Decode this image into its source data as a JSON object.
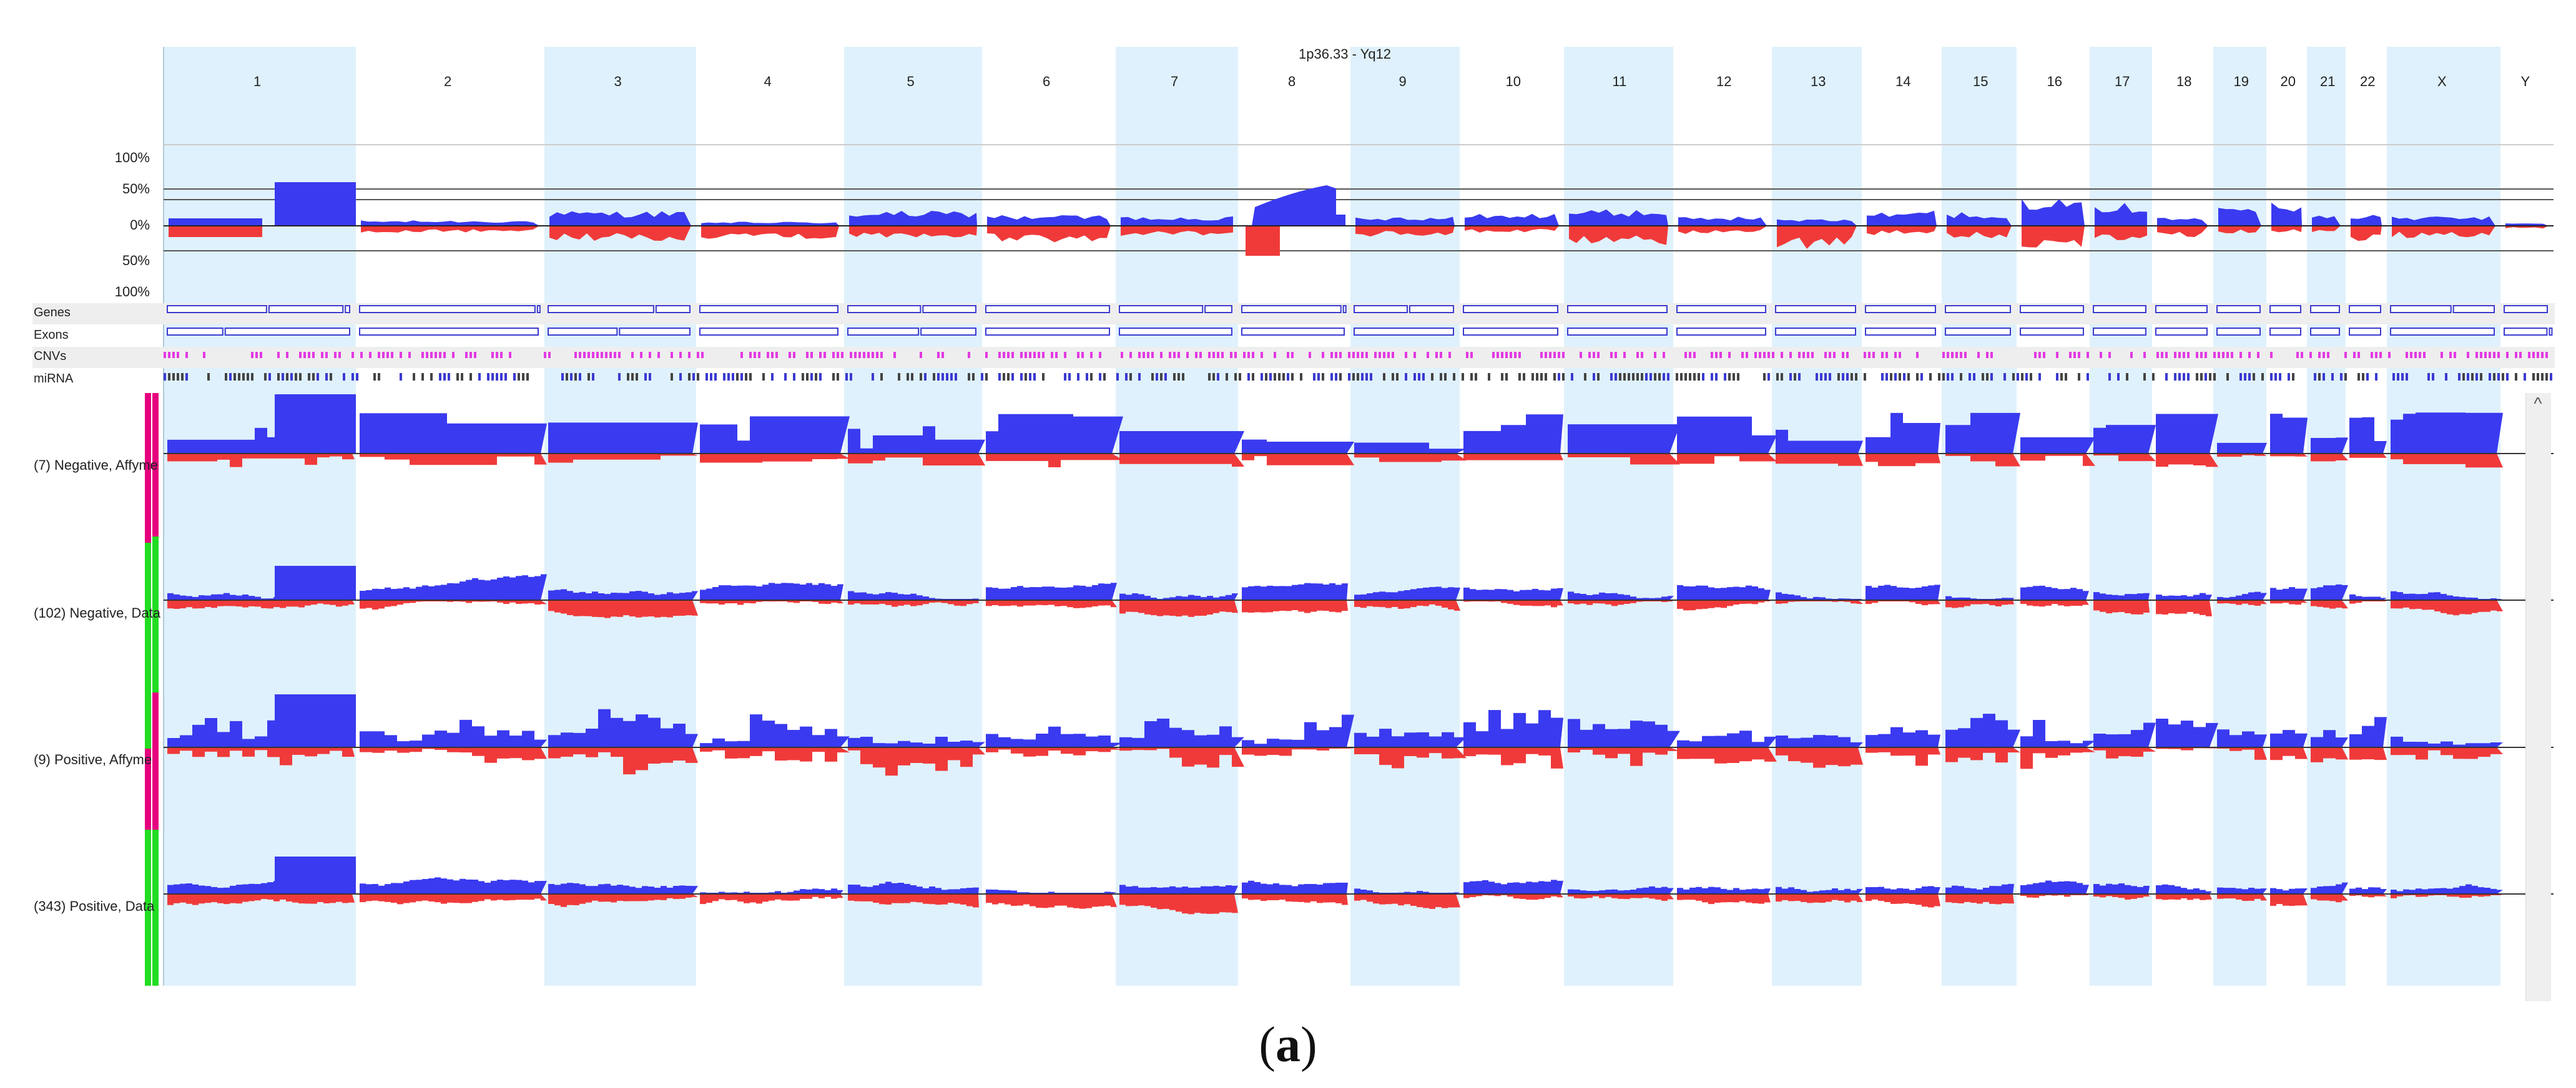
{
  "header": {
    "region_label": "1p36.33 - Yq12"
  },
  "chromosomes": [
    "1",
    "2",
    "3",
    "4",
    "5",
    "6",
    "7",
    "8",
    "9",
    "10",
    "11",
    "12",
    "13",
    "14",
    "15",
    "16",
    "17",
    "18",
    "19",
    "20",
    "21",
    "22",
    "X",
    "Y"
  ],
  "percent_axis": [
    "100%",
    "50%",
    "0%",
    "50%",
    "100%"
  ],
  "tracks": [
    {
      "name": "Genes"
    },
    {
      "name": "Exons"
    },
    {
      "name": "CNVs"
    },
    {
      "name": "miRNA"
    }
  ],
  "samples": [
    {
      "label": "(7) Negative, Affyme"
    },
    {
      "label": "(102) Negative, Data"
    },
    {
      "label": "(9) Positive, Affyme"
    },
    {
      "label": "(343) Positive, Data"
    }
  ],
  "scrollbar": {
    "up_arrow": "^"
  },
  "caption": {
    "open": "(",
    "letter": "a",
    "close": ")"
  },
  "colors": {
    "gain": "#3a3af0",
    "loss": "#f03a3a",
    "band": "#dff1fc",
    "cnv": "#e23ae2",
    "mirna_a": "#3a3ad0",
    "mirna_b": "#444444",
    "sidebar_magenta": "#e6007e",
    "sidebar_green": "#22dd22"
  }
}
